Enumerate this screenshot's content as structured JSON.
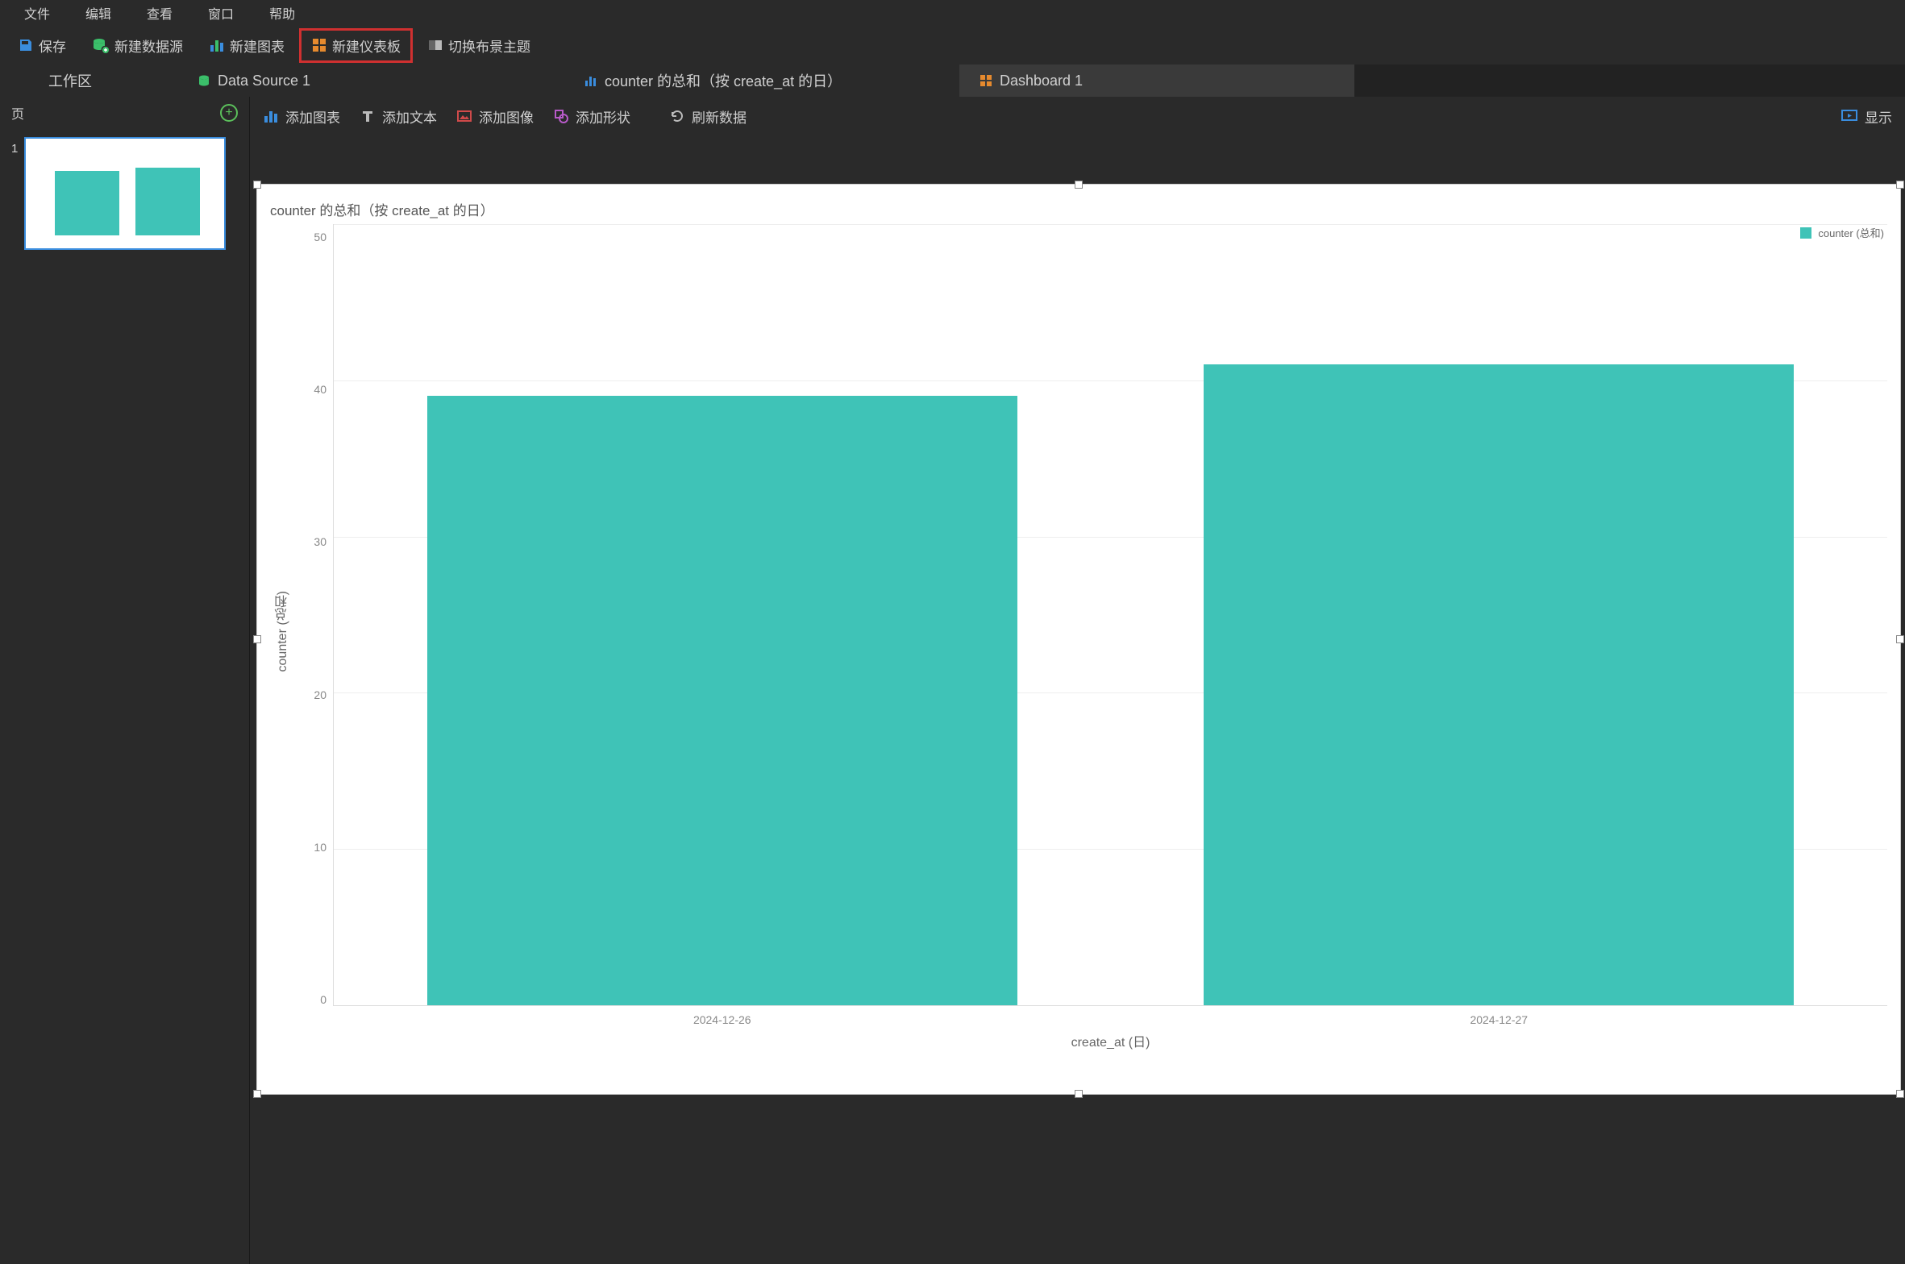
{
  "menu": {
    "items": [
      "文件",
      "编辑",
      "查看",
      "窗口",
      "帮助"
    ]
  },
  "toolbar": {
    "save": "保存",
    "new_source": "新建数据源",
    "new_chart": "新建图表",
    "new_dashboard": "新建仪表板",
    "switch_theme": "切换布景主题"
  },
  "tabs": {
    "workspace": "工作区",
    "data_source": "Data Source 1",
    "chart": "counter 的总和（按 create_at 的日）",
    "dashboard": "Dashboard 1"
  },
  "sidebar": {
    "title": "页",
    "thumb_number": "1"
  },
  "content_toolbar": {
    "add_chart": "添加图表",
    "add_text": "添加文本",
    "add_image": "添加图像",
    "add_shape": "添加形状",
    "refresh": "刷新数据",
    "present": "显示"
  },
  "chart": {
    "type": "bar",
    "title": "counter 的总和（按 create_at 的日）",
    "y_label": "counter (总和)",
    "x_label": "create_at (日)",
    "ylim": [
      0,
      50
    ],
    "yticks": [
      50,
      40,
      30,
      20,
      10,
      0
    ],
    "categories": [
      "2024-12-26",
      "2024-12-27"
    ],
    "values": [
      39,
      41
    ],
    "bar_color": "#3fc3b7",
    "grid_color": "#eeeeee",
    "axis_color": "#dddddd",
    "bar_width_ratio": 0.76,
    "background_color": "#ffffff",
    "title_fontsize": 17,
    "label_fontsize": 16,
    "tick_fontsize": 14,
    "legend": {
      "text": "counter (总和)",
      "color": "#3fc3b7"
    }
  },
  "colors": {
    "app_bg": "#2a2a2a",
    "highlight_border": "#d03030",
    "accent_blue": "#3a8dde",
    "accent_green": "#5bbf5b"
  }
}
